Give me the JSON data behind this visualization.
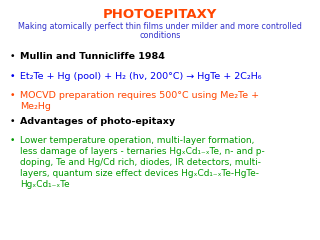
{
  "title": "PHOTOEPITAXY",
  "title_color": "#FF4500",
  "subtitle_line1": "Making atomically perfect thin films under milder and more controlled",
  "subtitle_line2": "conditions",
  "subtitle_color": "#3333CC",
  "bg_color": "#FFFFFF",
  "bullets": [
    {
      "text": "Mullin and Tunnicliffe 1984",
      "color": "#000000",
      "bold": true,
      "size": 6.8,
      "lines": 1
    },
    {
      "text": "Et₂Te + Hg (pool) + H₂ (hν, 200°C) → HgTe + 2C₂H₆",
      "color": "#0000EE",
      "bold": false,
      "size": 6.8,
      "lines": 1
    },
    {
      "text": "MOCVD preparation requires 500°C using Me₂Te +\nMe₂Hg",
      "color": "#FF4500",
      "bold": false,
      "size": 6.8,
      "lines": 2
    },
    {
      "text": "Advantages of photo-epitaxy",
      "color": "#000000",
      "bold": true,
      "size": 6.8,
      "lines": 1
    },
    {
      "text": "Lower temperature operation, multi-layer formation,\nless damage of layers - ternaries HgₓCd₁₋ₓTe, n- and p-\ndoping, Te and Hg/Cd rich, diodes, IR detectors, multi-\nlayers, quantum size effect devices HgₓCd₁₋ₓTe-HgTe-\nHgₓCd₁₋ₓTe",
      "color": "#009900",
      "bold": false,
      "size": 6.4,
      "lines": 5
    }
  ]
}
